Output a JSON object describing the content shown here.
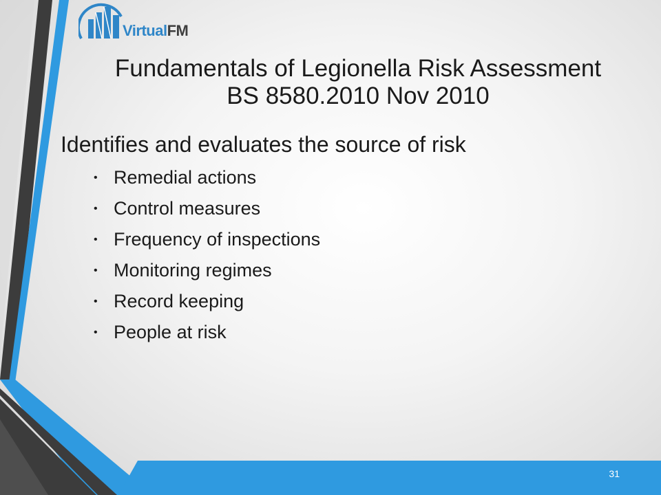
{
  "logo": {
    "brand_part1": "Virtual",
    "brand_part2": "FM"
  },
  "title": {
    "line1": "Fundamentals of Legionella Risk Assessment",
    "line2": "BS 8580.2010 Nov 2010"
  },
  "content": {
    "lead": "Identifies and evaluates the source of risk",
    "bullets": [
      "Remedial actions",
      "Control measures",
      "Frequency of inspections",
      "Monitoring regimes",
      "Record keeping",
      "People at risk"
    ]
  },
  "page_number": "31",
  "colors": {
    "accent_blue": "#2f9ae0",
    "dark_grey": "#3c3c3c",
    "logo_blue": "#2f86c8"
  }
}
